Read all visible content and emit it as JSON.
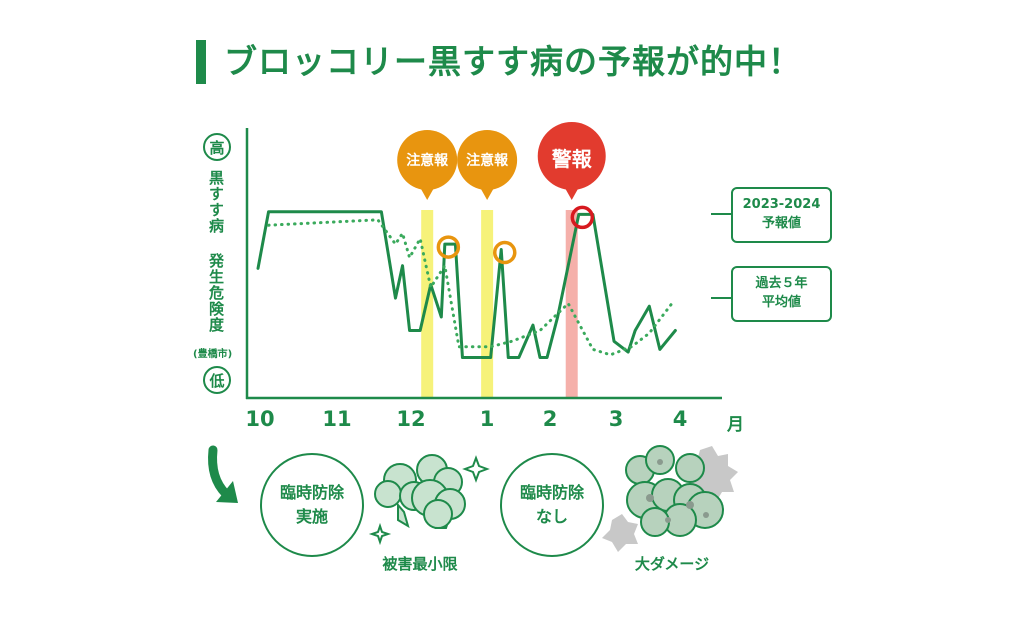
{
  "title": "ブロッコリー黒すす病の予報が的中！",
  "y_axis": {
    "high_label": "高",
    "low_label": "低",
    "label": "黒すす病 発生危険度",
    "sublabel": "(豊橋市)"
  },
  "x_axis": {
    "ticks": [
      "10",
      "11",
      "12",
      "1",
      "2",
      "3",
      "4"
    ],
    "unit": "月"
  },
  "callouts": {
    "forecast_line1": "2023-2024",
    "forecast_line2": "予報値",
    "average_line1": "過去５年",
    "average_line2": "平均値"
  },
  "alerts": [
    {
      "label": "注意報",
      "level": "caution",
      "month_position": 12.4
    },
    {
      "label": "注意報",
      "level": "caution",
      "month_position": 13.25
    },
    {
      "label": "警報",
      "level": "warning",
      "month_position": 14.45
    }
  ],
  "colors": {
    "green": "#1e8a4a",
    "dotted_green": "#3aaa5c",
    "caution_badge": "#e8950f",
    "caution_band": "#f6f27a",
    "warning_badge": "#e23b2e",
    "warning_band": "#f5b0aa",
    "caution_marker": "#e8950f",
    "warning_marker": "#d7191f"
  },
  "outcomes": {
    "with_control_line1": "臨時防除",
    "with_control_line2": "実施",
    "with_control_result": "被害最小限",
    "without_control_line1": "臨時防除",
    "without_control_line2": "なし",
    "without_control_result": "大ダメージ"
  },
  "chart_data": {
    "type": "line",
    "x_unit": "month",
    "xlim": [
      10,
      16.75
    ],
    "ylim": [
      0,
      10
    ],
    "y_ticks": [
      "低",
      "高"
    ],
    "grid": false,
    "series": [
      {
        "name": "2023-2024 予報値",
        "style": "solid",
        "x": [
          10.0,
          10.15,
          11.75,
          11.95,
          12.05,
          12.15,
          12.3,
          12.45,
          12.6,
          12.65,
          12.8,
          12.9,
          13.3,
          13.45,
          13.55,
          13.7,
          13.9,
          14.0,
          14.1,
          14.25,
          14.55,
          14.75,
          15.05,
          15.25,
          15.35,
          15.55,
          15.7,
          15.92
        ],
        "y": [
          4.8,
          6.9,
          6.9,
          3.7,
          4.9,
          2.5,
          2.5,
          4.2,
          3.0,
          5.7,
          5.7,
          1.5,
          1.5,
          5.5,
          1.5,
          1.5,
          2.7,
          1.5,
          1.5,
          3.0,
          6.8,
          6.8,
          2.1,
          1.7,
          2.5,
          3.4,
          1.8,
          2.5
        ]
      },
      {
        "name": "過去５年 平均値",
        "style": "dotted",
        "x": [
          10.15,
          11.7,
          11.95,
          12.05,
          12.15,
          12.3,
          12.45,
          12.65,
          12.85,
          13.3,
          13.6,
          14.0,
          14.4,
          14.75,
          15.0,
          15.3,
          15.55,
          15.9
        ],
        "y": [
          6.4,
          6.6,
          5.7,
          6.1,
          5.2,
          5.9,
          4.1,
          4.9,
          1.9,
          1.9,
          2.1,
          2.5,
          3.5,
          1.8,
          1.6,
          1.9,
          2.4,
          3.6
        ]
      }
    ],
    "highlighted_points": [
      {
        "x": 12.7,
        "y": 5.7,
        "marker": "caution"
      },
      {
        "x": 13.5,
        "y": 5.5,
        "marker": "caution"
      },
      {
        "x": 14.6,
        "y": 6.8,
        "marker": "warning"
      }
    ]
  }
}
